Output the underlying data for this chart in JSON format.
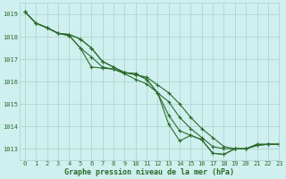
{
  "background_color": "#cff0ee",
  "grid_color": "#aacfcc",
  "line_color": "#2d6a2d",
  "text_color": "#2d6a2d",
  "xlabel": "Graphe pression niveau de la mer (hPa)",
  "ylim": [
    1012.5,
    1019.5
  ],
  "xlim": [
    -0.5,
    23
  ],
  "yticks": [
    1013,
    1014,
    1015,
    1016,
    1017,
    1018,
    1019
  ],
  "xticks": [
    0,
    1,
    2,
    3,
    4,
    5,
    6,
    7,
    8,
    9,
    10,
    11,
    12,
    13,
    14,
    15,
    16,
    17,
    18,
    19,
    20,
    21,
    22,
    23
  ],
  "series": [
    [
      1019.1,
      1018.6,
      1018.4,
      1018.15,
      1018.05,
      1017.5,
      1016.65,
      1016.6,
      1016.55,
      1016.4,
      1016.3,
      1016.2,
      1015.85,
      1015.5,
      1015.0,
      1014.4,
      1013.9,
      1013.5,
      1013.1,
      1013.0,
      1013.0,
      1013.2,
      1013.2,
      1013.2
    ],
    [
      1019.1,
      1018.6,
      1018.4,
      1018.15,
      1018.05,
      1017.5,
      1017.1,
      1016.65,
      1016.55,
      1016.35,
      1016.1,
      1015.9,
      1015.5,
      1015.1,
      1014.4,
      1013.9,
      1013.5,
      1013.1,
      1013.0,
      1013.0,
      1013.0,
      1013.2,
      1013.2,
      1013.2
    ],
    [
      1019.1,
      1018.6,
      1018.4,
      1018.15,
      1018.1,
      1017.9,
      1017.5,
      1016.9,
      1016.65,
      1016.4,
      1016.35,
      1016.1,
      1015.5,
      1014.5,
      1013.8,
      1013.6,
      1013.4,
      1012.8,
      1012.75,
      1013.0,
      1013.0,
      1013.15,
      1013.2,
      1013.2
    ],
    [
      1019.1,
      1018.6,
      1018.4,
      1018.15,
      1018.1,
      1017.9,
      1017.5,
      1016.9,
      1016.65,
      1016.4,
      1016.35,
      1016.1,
      1015.5,
      1014.1,
      1013.35,
      1013.6,
      1013.4,
      1012.8,
      1012.75,
      1013.0,
      1013.0,
      1013.15,
      1013.2,
      1013.2
    ]
  ]
}
